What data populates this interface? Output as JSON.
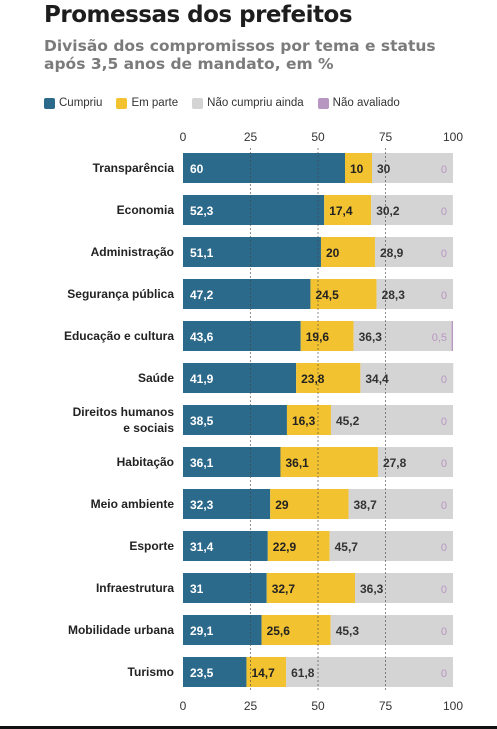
{
  "title": "Promessas dos prefeitos",
  "subtitle": "Divisão dos compromissos por tema e status após 3,5 anos de mandato, em %",
  "legend": [
    {
      "label": "Cumpriu",
      "color": "#2c6a8c"
    },
    {
      "label": "Em parte",
      "color": "#f2c230"
    },
    {
      "label": "Não cumpriu ainda",
      "color": "#d4d4d4"
    },
    {
      "label": "Não avaliado",
      "color": "#b896c2"
    }
  ],
  "chart_data": {
    "type": "bar",
    "orientation": "horizontal",
    "stacked": true,
    "xlim": [
      0,
      100
    ],
    "x_ticks": [
      "0",
      "25",
      "50",
      "75",
      "100"
    ],
    "grid": true,
    "legend_position": "top",
    "categories": [
      "Transparência",
      "Economia",
      "Administração",
      "Segurança pública",
      "Educação e cultura",
      "Saúde",
      "Direitos humanos e sociais",
      "Habitação",
      "Meio ambiente",
      "Esporte",
      "Infraestrutura",
      "Mobilidade urbana",
      "Turismo"
    ],
    "series": [
      {
        "name": "Cumpriu",
        "color": "#2c6a8c",
        "values": [
          60,
          52.3,
          51.1,
          47.2,
          43.6,
          41.9,
          38.5,
          36.1,
          32.3,
          31.4,
          31,
          29.1,
          23.5
        ],
        "labels": [
          "60",
          "52,3",
          "51,1",
          "47,2",
          "43,6",
          "41,9",
          "38,5",
          "36,1",
          "32,3",
          "31,4",
          "31",
          "29,1",
          "23,5"
        ]
      },
      {
        "name": "Em parte",
        "color": "#f2c230",
        "values": [
          10,
          17.4,
          20,
          24.5,
          19.6,
          23.8,
          16.3,
          36.1,
          29,
          22.9,
          32.7,
          25.6,
          14.7
        ],
        "labels": [
          "10",
          "17,4",
          "20",
          "24,5",
          "19,6",
          "23,8",
          "16,3",
          "36,1",
          "29",
          "22,9",
          "32,7",
          "25,6",
          "14,7"
        ]
      },
      {
        "name": "Não cumpriu ainda",
        "color": "#d4d4d4",
        "values": [
          30,
          30.2,
          28.9,
          28.3,
          36.3,
          34.4,
          45.2,
          27.8,
          38.7,
          45.7,
          36.3,
          45.3,
          61.8
        ],
        "labels": [
          "30",
          "30,2",
          "28,9",
          "28,3",
          "36,3",
          "34,4",
          "45,2",
          "27,8",
          "38,7",
          "45,7",
          "36,3",
          "45,3",
          "61,8"
        ]
      },
      {
        "name": "Não avaliado",
        "color": "#b896c2",
        "values": [
          0,
          0,
          0,
          0,
          0.5,
          0,
          0,
          0,
          0,
          0,
          0,
          0,
          0
        ],
        "labels": [
          "0",
          "0",
          "0",
          "0",
          "0,5",
          "0",
          "0",
          "0",
          "0",
          "0",
          "0",
          "0",
          "0"
        ]
      }
    ]
  }
}
